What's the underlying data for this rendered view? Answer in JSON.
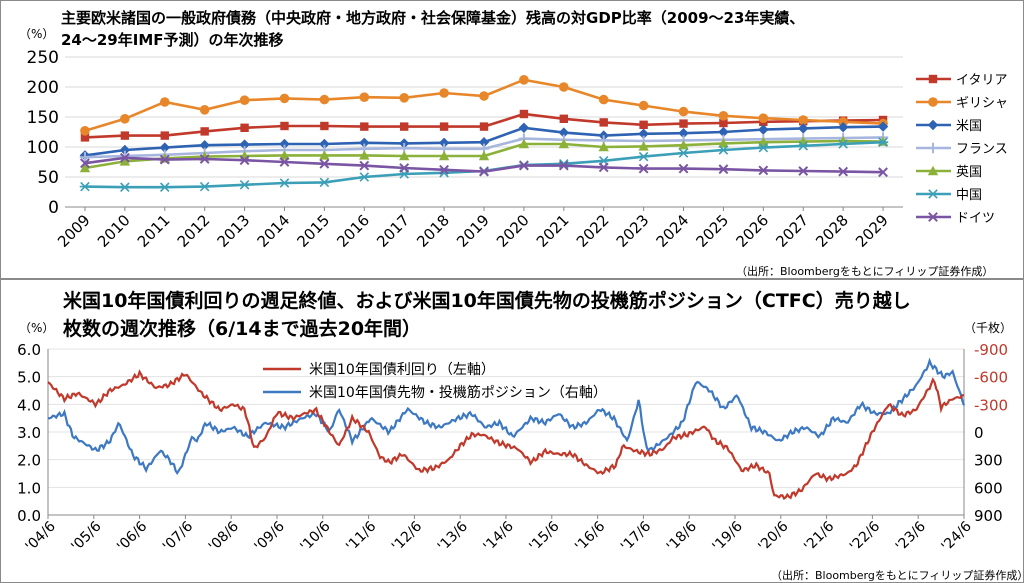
{
  "top_chart": {
    "title_line1": "主要欧米諸国の一般政府債務（中央政府・地方政府・社会保障基金）残高の対GDP比率（2009〜23年実績、",
    "title_line2": "24〜29年IMF予測）の年次推移",
    "unit": "（%）",
    "source": "（出所：Bloombergをもとにフィリップ証券作成）"
  },
  "bottom_chart": {
    "title_line1": "米国10年国債利回りの週足終値、および米国10年国債先物の投機筋ポジション（CTFC）売り越し",
    "title_line2": "枚数の週次推移（6/14まで過去20年間）",
    "left_unit": "（%）",
    "right_unit": "（千枚）",
    "source": "（出所：Bloombergをもとにフィリップ証券作成）"
  },
  "chart_data": [
    {
      "type": "line",
      "x": [
        "2009",
        "2010",
        "2011",
        "2012",
        "2013",
        "2014",
        "2015",
        "2016",
        "2017",
        "2018",
        "2019",
        "2020",
        "2021",
        "2022",
        "2023",
        "2024",
        "2025",
        "2026",
        "2027",
        "2028",
        "2029"
      ],
      "ylim": [
        0,
        250
      ],
      "yticks": [
        0,
        50,
        100,
        150,
        200,
        250
      ],
      "grid": true,
      "legend": "right",
      "series": [
        {
          "name": "イタリア",
          "color": "#c0392b",
          "marker": "square",
          "values": [
            116,
            119,
            119,
            126,
            132,
            135,
            135,
            134,
            134,
            134,
            134,
            155,
            147,
            141,
            137,
            139,
            140,
            142,
            143,
            144,
            145
          ]
        },
        {
          "name": "ギリシャ",
          "color": "#e8862a",
          "marker": "circle",
          "values": [
            127,
            147,
            175,
            162,
            178,
            181,
            179,
            183,
            182,
            190,
            185,
            212,
            200,
            179,
            169,
            159,
            152,
            148,
            145,
            142,
            139
          ]
        },
        {
          "name": "米国",
          "color": "#2e62b2",
          "marker": "diamond",
          "values": [
            86,
            95,
            99,
            103,
            104,
            105,
            105,
            107,
            106,
            107,
            108,
            132,
            124,
            119,
            122,
            123,
            125,
            129,
            131,
            133,
            134
          ]
        },
        {
          "name": "フランス",
          "color": "#a7b6de",
          "marker": "plus",
          "values": [
            83,
            85,
            87,
            90,
            93,
            95,
            95,
            97,
            98,
            97,
            97,
            114,
            112,
            111,
            110,
            111,
            112,
            113,
            114,
            115,
            116
          ]
        },
        {
          "name": "英国",
          "color": "#8cb13a",
          "marker": "triangle",
          "values": [
            65,
            76,
            81,
            84,
            85,
            86,
            86,
            86,
            85,
            85,
            85,
            105,
            105,
            100,
            101,
            103,
            106,
            108,
            109,
            110,
            109
          ]
        },
        {
          "name": "中国",
          "color": "#3a9fb7",
          "marker": "star",
          "values": [
            34,
            33,
            33,
            34,
            37,
            40,
            41,
            50,
            55,
            57,
            60,
            70,
            72,
            77,
            84,
            90,
            95,
            99,
            102,
            105,
            108
          ]
        },
        {
          "name": "ドイツ",
          "color": "#7a55a3",
          "marker": "x",
          "values": [
            73,
            82,
            79,
            80,
            78,
            75,
            72,
            69,
            65,
            62,
            59,
            69,
            69,
            66,
            64,
            64,
            63,
            61,
            60,
            59,
            58
          ]
        }
      ]
    },
    {
      "type": "line",
      "x_labels": [
        "'04/6",
        "'05/6",
        "'06/6",
        "'07/6",
        "'08/6",
        "'09/6",
        "'10/6",
        "'11/6",
        "'12/6",
        "'13/6",
        "'14/6",
        "'15/6",
        "'16/6",
        "'17/6",
        "'18/6",
        "'19/6",
        "'20/6",
        "'21/6",
        "'22/6",
        "'23/6",
        "'24/6"
      ],
      "ylim_left": [
        0.0,
        6.0
      ],
      "yticks_left": [
        "0.0",
        "1.0",
        "2.0",
        "3.0",
        "4.0",
        "5.0",
        "6.0"
      ],
      "ylim_right": [
        900,
        -900
      ],
      "yticks_right": [
        "-900",
        "-600",
        "-300",
        "0",
        "300",
        "600",
        "900"
      ],
      "legend": "top-left",
      "series": [
        {
          "name": "米国10年国債利回り（左軸）",
          "axis": "left",
          "color": "#c0392b",
          "x": [
            2004.45,
            2004.8,
            2005.1,
            2005.5,
            2005.8,
            2006.1,
            2006.45,
            2006.8,
            2007.1,
            2007.45,
            2007.8,
            2008.2,
            2008.5,
            2008.75,
            2008.95,
            2009.2,
            2009.45,
            2009.8,
            2010.1,
            2010.3,
            2010.6,
            2010.8,
            2011.1,
            2011.45,
            2011.7,
            2011.9,
            2012.2,
            2012.55,
            2012.9,
            2013.2,
            2013.45,
            2013.7,
            2013.95,
            2014.3,
            2014.7,
            2015.0,
            2015.3,
            2015.6,
            2015.9,
            2016.2,
            2016.5,
            2016.85,
            2017.0,
            2017.3,
            2017.6,
            2017.9,
            2018.1,
            2018.4,
            2018.8,
            2019.0,
            2019.3,
            2019.6,
            2019.9,
            2020.2,
            2020.3,
            2020.6,
            2020.9,
            2021.2,
            2021.5,
            2021.9,
            2022.1,
            2022.45,
            2022.8,
            2023.1,
            2023.4,
            2023.8,
            2023.95,
            2024.2,
            2024.45
          ],
          "values": [
            4.8,
            4.2,
            4.4,
            4.0,
            4.5,
            4.7,
            5.1,
            4.6,
            4.7,
            5.1,
            4.4,
            3.8,
            4.0,
            3.8,
            2.4,
            2.8,
            3.7,
            3.5,
            3.7,
            3.8,
            3.0,
            2.5,
            3.5,
            3.0,
            2.1,
            1.9,
            2.2,
            1.6,
            1.7,
            2.0,
            2.5,
            2.9,
            2.9,
            2.6,
            2.4,
            1.9,
            2.3,
            2.2,
            2.2,
            1.8,
            1.5,
            1.8,
            2.5,
            2.3,
            2.2,
            2.4,
            2.8,
            2.9,
            3.2,
            2.7,
            2.4,
            1.6,
            1.8,
            1.5,
            0.7,
            0.65,
            0.9,
            1.5,
            1.3,
            1.5,
            1.8,
            3.0,
            4.0,
            3.6,
            3.8,
            4.9,
            3.9,
            4.2,
            4.3
          ]
        },
        {
          "name": "米国10年国債先物・投機筋ポジション（右軸）",
          "axis": "right",
          "color": "#3d78c2",
          "x": [
            2004.45,
            2004.8,
            2005.0,
            2005.5,
            2005.8,
            2006.0,
            2006.3,
            2006.6,
            2006.9,
            2007.1,
            2007.3,
            2007.6,
            2007.7,
            2007.9,
            2008.2,
            2008.5,
            2008.8,
            2009.2,
            2009.6,
            2010.0,
            2010.3,
            2010.6,
            2010.8,
            2011.1,
            2011.5,
            2011.9,
            2012.3,
            2012.7,
            2013.0,
            2013.4,
            2013.7,
            2014.0,
            2014.3,
            2014.6,
            2015.0,
            2015.3,
            2015.6,
            2015.9,
            2016.2,
            2016.5,
            2016.8,
            2017.1,
            2017.35,
            2017.5,
            2017.6,
            2018.0,
            2018.3,
            2018.6,
            2018.9,
            2019.2,
            2019.5,
            2019.8,
            2020.1,
            2020.4,
            2020.7,
            2021.0,
            2021.3,
            2021.6,
            2021.9,
            2022.2,
            2022.5,
            2022.8,
            2023.1,
            2023.4,
            2023.7,
            2024.0,
            2024.2,
            2024.45
          ],
          "values": [
            -150,
            -200,
            50,
            200,
            100,
            -100,
            250,
            400,
            200,
            300,
            450,
            50,
            100,
            -100,
            0,
            -50,
            50,
            -100,
            -50,
            -150,
            -200,
            0,
            -250,
            100,
            -150,
            0,
            -250,
            -100,
            -50,
            -150,
            -200,
            -50,
            -100,
            50,
            -150,
            -100,
            -200,
            -50,
            -100,
            -250,
            -150,
            100,
            -350,
            150,
            200,
            50,
            -100,
            -550,
            -450,
            -250,
            -400,
            -50,
            0,
            100,
            0,
            -50,
            50,
            -150,
            -100,
            -300,
            -200,
            -200,
            -350,
            -500,
            -750,
            -600,
            -650,
            -300
          ]
        }
      ]
    }
  ]
}
